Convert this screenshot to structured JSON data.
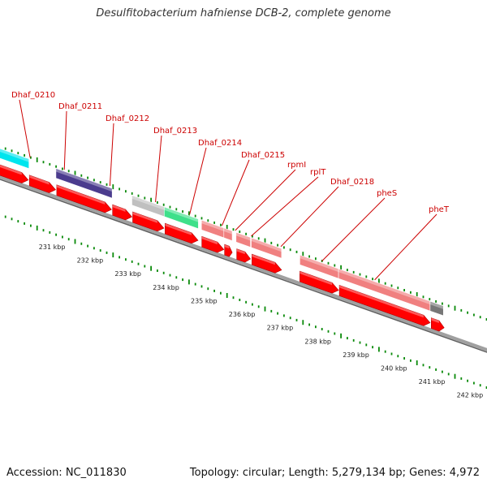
{
  "header": {
    "title": "Desulfitobacterium hafniense DCB-2, complete genome"
  },
  "footer": {
    "accession": "Accession: NC_011830",
    "summary": "Topology: circular; Length: 5,279,134 bp; Genes: 4,972"
  },
  "colors": {
    "cds": "#ff0000",
    "gene": "#f08080",
    "trna": "#00e5ee",
    "rrna": "#4b3c8e",
    "misc": "#c0c0c0",
    "ncrna": "#3ee08a",
    "other": "#777777",
    "gc_tick": "#0a8a0a",
    "label": "#cc0000",
    "backbone": "#888888"
  },
  "chart_data": {
    "type": "genome-map",
    "visible_range_kbp": [
      230.1,
      243.0
    ],
    "axis_ticks": [
      {
        "kbp": 231,
        "label": "231 kbp"
      },
      {
        "kbp": 232,
        "label": "232 kbp"
      },
      {
        "kbp": 233,
        "label": "233 kbp"
      },
      {
        "kbp": 234,
        "label": "234 kbp"
      },
      {
        "kbp": 235,
        "label": "235 kbp"
      },
      {
        "kbp": 236,
        "label": "236 kbp"
      },
      {
        "kbp": 237,
        "label": "237 kbp"
      },
      {
        "kbp": 238,
        "label": "238 kbp"
      },
      {
        "kbp": 239,
        "label": "239 kbp"
      },
      {
        "kbp": 240,
        "label": "240 kbp"
      },
      {
        "kbp": 241,
        "label": "241 kbp"
      },
      {
        "kbp": 242,
        "label": "242 kbp"
      }
    ],
    "feature_rows": [
      {
        "kind": "trna",
        "start": 230.1,
        "end": 230.87
      },
      {
        "kind": "rrna",
        "start": 231.58,
        "end": 233.06
      },
      {
        "kind": "misc",
        "start": 233.58,
        "end": 234.43
      },
      {
        "kind": "ncrna",
        "start": 234.43,
        "end": 235.33
      },
      {
        "kind": "gene",
        "start": 235.41,
        "end": 236.0
      },
      {
        "kind": "gene",
        "start": 236.0,
        "end": 236.22
      },
      {
        "kind": "gene",
        "start": 236.32,
        "end": 236.7
      },
      {
        "kind": "gene",
        "start": 236.72,
        "end": 237.52
      },
      {
        "kind": "gene",
        "start": 238.0,
        "end": 239.02
      },
      {
        "kind": "gene",
        "start": 239.02,
        "end": 241.43
      },
      {
        "kind": "other",
        "start": 241.43,
        "end": 241.78
      }
    ],
    "cds_arrows": [
      {
        "start": 230.1,
        "end": 230.85
      },
      {
        "start": 230.88,
        "end": 231.57
      },
      {
        "start": 231.6,
        "end": 233.04
      },
      {
        "start": 233.07,
        "end": 233.58
      },
      {
        "start": 233.6,
        "end": 234.42
      },
      {
        "start": 234.45,
        "end": 235.32
      },
      {
        "start": 235.42,
        "end": 236.0
      },
      {
        "start": 236.02,
        "end": 236.22
      },
      {
        "start": 236.34,
        "end": 236.7
      },
      {
        "start": 236.74,
        "end": 237.52
      },
      {
        "start": 238.0,
        "end": 239.02
      },
      {
        "start": 239.04,
        "end": 241.43
      },
      {
        "start": 241.46,
        "end": 241.8
      }
    ],
    "gene_labels": [
      {
        "name": "Dhaf_0210",
        "kbp": 230.9
      },
      {
        "name": "Dhaf_0211",
        "kbp": 231.8
      },
      {
        "name": "Dhaf_0212",
        "kbp": 233.0
      },
      {
        "name": "Dhaf_0213",
        "kbp": 234.2
      },
      {
        "name": "Dhaf_0214",
        "kbp": 235.1
      },
      {
        "name": "Dhaf_0215",
        "kbp": 235.95
      },
      {
        "name": "rpmI",
        "kbp": 236.3
      },
      {
        "name": "rplT",
        "kbp": 236.72
      },
      {
        "name": "Dhaf_0218",
        "kbp": 237.5
      },
      {
        "name": "pheS",
        "kbp": 238.58
      },
      {
        "name": "pheT",
        "kbp": 239.97
      }
    ]
  }
}
